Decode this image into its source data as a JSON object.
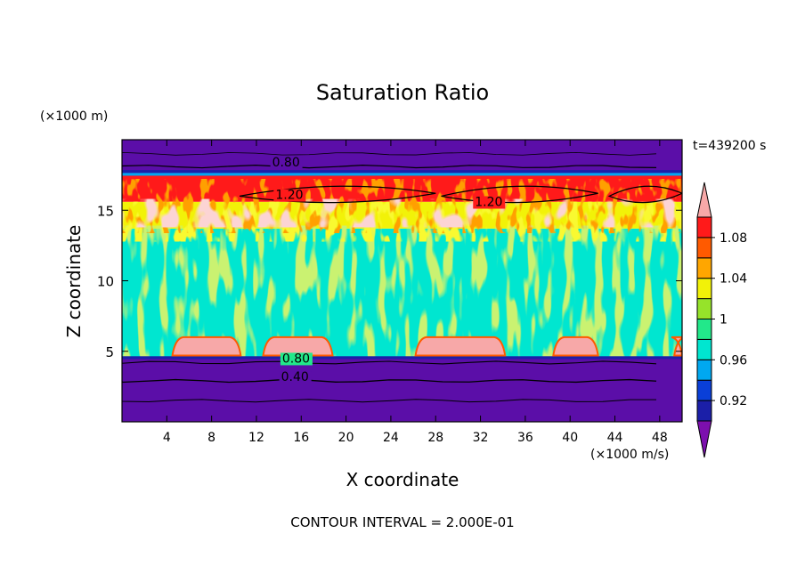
{
  "chart_data": {
    "type": "heatmap",
    "title": "Saturation Ratio",
    "xlabel": "X coordinate",
    "ylabel": "Z coordinate",
    "x_unit": "(×1000 m/s)",
    "y_unit": "(×1000 m)",
    "time_label": "t=439200 s",
    "footer": "CONTOUR INTERVAL = 2.000E-01",
    "xlim": [
      0,
      50
    ],
    "ylim": [
      0,
      20
    ],
    "x_ticks": [
      "4",
      "8",
      "12",
      "16",
      "20",
      "24",
      "28",
      "32",
      "36",
      "40",
      "44",
      "48"
    ],
    "y_ticks": [
      "5",
      "10",
      "15"
    ],
    "colorbar": {
      "labels": [
        "1.08",
        "1.04",
        "1",
        "0.96",
        "0.92"
      ],
      "levels": [
        0.9,
        0.92,
        0.94,
        0.96,
        0.98,
        1.0,
        1.02,
        1.04,
        1.06,
        1.08,
        1.1
      ],
      "colors": [
        "#5b0ea8",
        "#1b1fa8",
        "#0a3fd8",
        "#00a8f0",
        "#00e6d0",
        "#22e88a",
        "#96e32a",
        "#f2f208",
        "#ffa600",
        "#ff5a00",
        "#ff1a1a",
        "#f7a8a8",
        "#7c0fae"
      ]
    },
    "contour_labels": [
      {
        "text": "0.80",
        "x": 13.4,
        "y": 18.1
      },
      {
        "text": "1.20",
        "x": 13.7,
        "y": 15.8
      },
      {
        "text": "1.20",
        "x": 31.5,
        "y": 15.3
      },
      {
        "text": "0.80",
        "x": 14.3,
        "y": 4.2
      },
      {
        "text": "0.40",
        "x": 14.2,
        "y": 2.9
      }
    ],
    "bands": [
      {
        "z0": 0.0,
        "z1": 4.5,
        "value": 0.5
      },
      {
        "z0": 4.5,
        "z1": 13.7,
        "value": 0.99
      },
      {
        "z0": 13.7,
        "z1": 15.6,
        "value": 1.05
      },
      {
        "z0": 15.6,
        "z1": 17.4,
        "value": 1.2
      },
      {
        "z0": 17.4,
        "z1": 20.0,
        "value": 0.7
      }
    ]
  }
}
